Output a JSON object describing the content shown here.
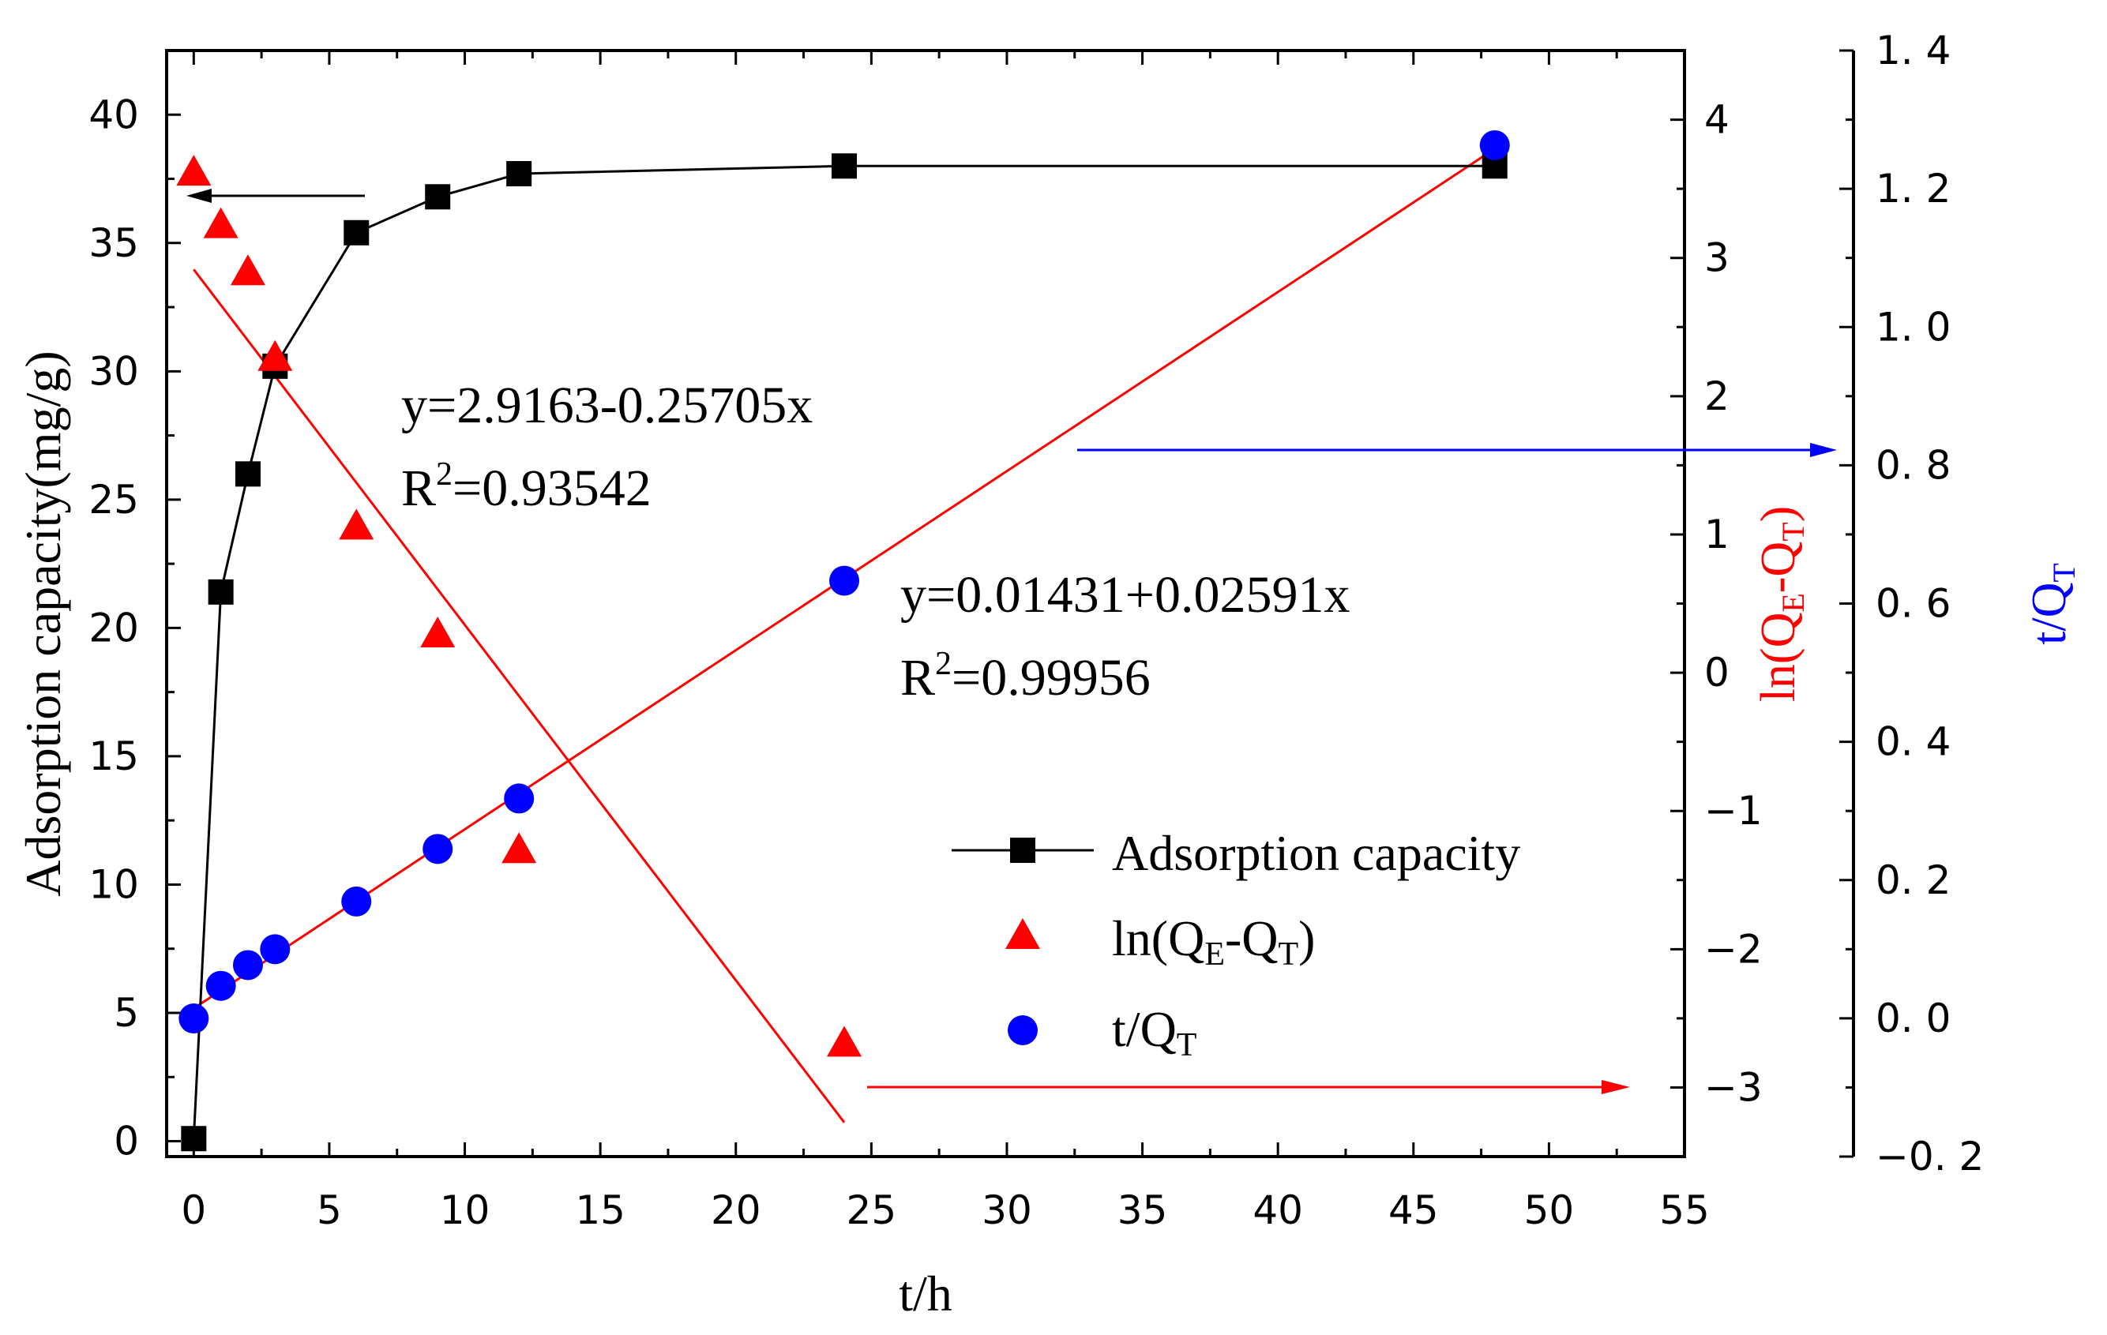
{
  "chart_data": {
    "type": "scatter",
    "xlabel": "t/h",
    "ylabel_left": "Adsorption capacity(mg/g)",
    "ylabel_right1": {
      "base": "ln(Q",
      "sub1": "E",
      "mid": "-Q",
      "sub2": "T",
      "end": ")"
    },
    "ylabel_right2": {
      "base": "t/Q",
      "sub": "T"
    },
    "xlim": [
      -1,
      55
    ],
    "x_ticks": [
      "0",
      "5",
      "10",
      "15",
      "20",
      "25",
      "30",
      "35",
      "40",
      "45",
      "50",
      "55"
    ],
    "ylim_left": [
      -0.6,
      42.5
    ],
    "y_ticks_left": [
      "0",
      "5",
      "10",
      "15",
      "20",
      "25",
      "30",
      "35",
      "40"
    ],
    "ylim_right1": [
      -3.5,
      4.5
    ],
    "y_ticks_right1": [
      "−3",
      "−2",
      "−1",
      "0",
      "1",
      "2",
      "3",
      "4"
    ],
    "ylim_right2": [
      -0.2,
      1.4
    ],
    "y_ticks_right2": [
      "−0. 2",
      "0. 0",
      "0. 2",
      "0. 4",
      "0. 6",
      "0. 8",
      "1. 0",
      "1. 2",
      "1. 4"
    ],
    "colors": {
      "capacity": "#000000",
      "ln": "#ff0000",
      "tq": "#0000ff",
      "fit": "#ff0000"
    },
    "series": [
      {
        "name": "Adsorption capacity",
        "axis": "left",
        "marker": "square",
        "line": true,
        "x": [
          0,
          1,
          2,
          3,
          6,
          9,
          12,
          24,
          48
        ],
        "y": [
          0.1,
          21.4,
          26.0,
          30.2,
          35.4,
          36.8,
          37.7,
          38.0,
          38.0
        ]
      },
      {
        "name": "ln(QE-QT)",
        "axis": "right1",
        "marker": "triangle",
        "line": false,
        "x": [
          0,
          1,
          2,
          3,
          6,
          9,
          12,
          24
        ],
        "y": [
          3.62,
          3.24,
          2.9,
          2.28,
          1.06,
          0.28,
          -1.28,
          -2.68
        ]
      },
      {
        "name": "t/QT",
        "axis": "right2",
        "marker": "circle",
        "line": false,
        "x": [
          0,
          1,
          2,
          3,
          6,
          9,
          12,
          24,
          48
        ],
        "y": [
          -0.0002,
          0.047,
          0.077,
          0.1,
          0.169,
          0.245,
          0.318,
          0.633,
          1.263
        ]
      }
    ],
    "fits": [
      {
        "axis": "right1",
        "intercept": 2.9163,
        "slope": -0.25705,
        "x_range": [
          0,
          24
        ]
      },
      {
        "axis": "right2",
        "intercept": 0.01431,
        "slope": 0.02591,
        "x_range": [
          0,
          48
        ]
      }
    ],
    "annotations": [
      {
        "eq": "y=2.9163-0.25705x",
        "r2_prefix": "R",
        "r2_sup": "2",
        "r2_value": "=0.93542"
      },
      {
        "eq": "y=0.01431+0.02591x",
        "r2_prefix": "R",
        "r2_sup": "2",
        "r2_value": "=0.99956"
      }
    ],
    "legend": {
      "placement": "lower-right",
      "entries": [
        {
          "label": "Adsorption capacity"
        },
        {
          "label_base": "ln(Q",
          "label_sub1": "E",
          "label_mid": "-Q",
          "label_sub2": "T",
          "label_end": ")"
        },
        {
          "label_base": "t/Q",
          "label_sub": "T"
        }
      ]
    }
  }
}
